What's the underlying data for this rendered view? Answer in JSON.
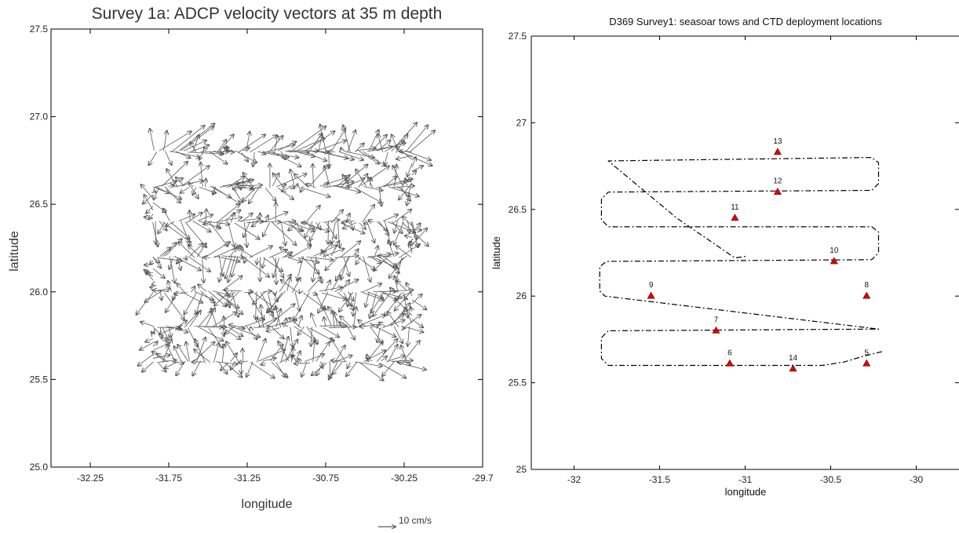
{
  "chart_data": [
    {
      "type": "scatter",
      "title": "Survey 1a: ADCP velocity vectors at 35 m depth",
      "xlabel": "longitude",
      "ylabel": "latitude",
      "xlim": [
        -32.5,
        -29.75
      ],
      "ylim": [
        25.0,
        27.5
      ],
      "x_tick_labels": [
        "-32.25",
        "-31.75",
        "-31.25",
        "-30.75",
        "-30.25",
        "-29.7"
      ],
      "y_tick_labels": [
        "25.0",
        "25.5",
        "26.0",
        "26.5",
        "27.0",
        "27.5"
      ],
      "grid": false,
      "scale_label": "10 cm/s",
      "scale_vector_speed": 10,
      "vector_color": "#555555",
      "transects": [
        {
          "lat": 26.8,
          "lon_start": -31.85,
          "lon_end": -30.2,
          "u_mean": 8,
          "v_mean": 4
        },
        {
          "lat": 26.6,
          "lon_start": -31.85,
          "lon_end": -30.2,
          "u_mean": 5,
          "v_mean": 2
        },
        {
          "lat": 26.4,
          "lon_start": -31.85,
          "lon_end": -30.2,
          "u_mean": 4,
          "v_mean": -2
        },
        {
          "lat": 26.2,
          "lon_start": -31.85,
          "lon_end": -30.2,
          "u_mean": 3,
          "v_mean": -3
        },
        {
          "lat": 26.0,
          "lon_start": -31.85,
          "lon_end": -30.2,
          "u_mean": 2,
          "v_mean": -3
        },
        {
          "lat": 25.8,
          "lon_start": -31.85,
          "lon_end": -30.2,
          "u_mean": 4,
          "v_mean": 1
        },
        {
          "lat": 25.6,
          "lon_start": -31.85,
          "lon_end": -30.2,
          "u_mean": 3,
          "v_mean": 2
        }
      ]
    },
    {
      "type": "line",
      "title": "D369 Survey1: seasoar tows and CTD deployment locations",
      "xlabel": "longitude",
      "ylabel": "latitude",
      "xlim": [
        -32.25,
        -29.75
      ],
      "ylim": [
        25.0,
        27.5
      ],
      "x_ticks": [
        -32,
        -31.5,
        -31,
        -30.5,
        -30
      ],
      "x_tick_labels": [
        "-32",
        "-31.5",
        "-31",
        "-30.5",
        "-30"
      ],
      "y_ticks": [
        25,
        25.5,
        26,
        26.5,
        27,
        27.5
      ],
      "y_tick_labels": [
        "25",
        "25.5",
        "26",
        "26.5",
        "27",
        "27.5"
      ],
      "grid": false,
      "track_style": "dash-dot",
      "track_color": "#000000",
      "marker_color": "#e00000",
      "track": [
        [
          -30.2,
          25.68
        ],
        [
          -30.32,
          25.65
        ],
        [
          -30.42,
          25.62
        ],
        [
          -30.55,
          25.6
        ],
        [
          -31.8,
          25.6
        ],
        [
          -31.84,
          25.64
        ],
        [
          -31.84,
          25.76
        ],
        [
          -31.8,
          25.8
        ],
        [
          -30.22,
          25.81
        ],
        [
          -31.82,
          26.0
        ],
        [
          -31.85,
          26.03
        ],
        [
          -31.85,
          26.17
        ],
        [
          -31.81,
          26.2
        ],
        [
          -30.26,
          26.21
        ],
        [
          -30.22,
          26.25
        ],
        [
          -30.22,
          26.37
        ],
        [
          -30.26,
          26.4
        ],
        [
          -31.8,
          26.4
        ],
        [
          -31.84,
          26.44
        ],
        [
          -31.84,
          26.56
        ],
        [
          -31.8,
          26.6
        ],
        [
          -30.26,
          26.61
        ],
        [
          -30.22,
          26.65
        ],
        [
          -30.22,
          26.77
        ],
        [
          -30.26,
          26.8
        ],
        [
          -31.8,
          26.78
        ],
        [
          -31.4,
          26.45
        ],
        [
          -31.06,
          26.22
        ],
        [
          -30.99,
          26.23
        ]
      ],
      "stations": [
        {
          "id": "5",
          "lon": -30.29,
          "lat": 25.61
        },
        {
          "id": "6",
          "lon": -31.09,
          "lat": 25.61
        },
        {
          "id": "7",
          "lon": -31.17,
          "lat": 25.8
        },
        {
          "id": "8",
          "lon": -30.29,
          "lat": 26.0
        },
        {
          "id": "9",
          "lon": -31.55,
          "lat": 26.0
        },
        {
          "id": "10",
          "lon": -30.48,
          "lat": 26.2
        },
        {
          "id": "11",
          "lon": -31.06,
          "lat": 26.45
        },
        {
          "id": "12",
          "lon": -30.81,
          "lat": 26.6
        },
        {
          "id": "13",
          "lon": -30.81,
          "lat": 26.83
        },
        {
          "id": "14",
          "lon": -30.72,
          "lat": 25.58
        }
      ]
    }
  ]
}
